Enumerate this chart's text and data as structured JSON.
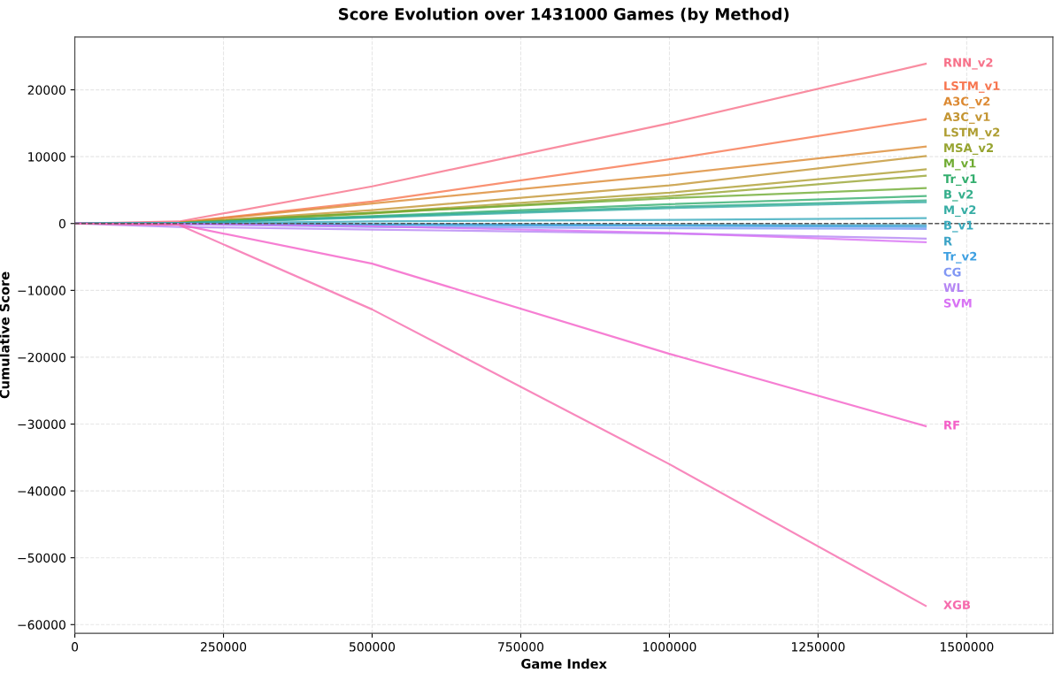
{
  "chart_data": {
    "type": "line",
    "title": "Score Evolution over 1431000 Games (by Method)",
    "xlabel": "Game Index",
    "ylabel": "Cumulative Score",
    "x": [
      0,
      175000,
      500000,
      1000000,
      1431000
    ],
    "series": [
      {
        "name": "RNN_v2",
        "color": "#f77189",
        "values": [
          0,
          300,
          5560,
          15000,
          23900
        ]
      },
      {
        "name": "LSTM_v1",
        "color": "#f7754f",
        "values": [
          0,
          150,
          3300,
          9600,
          15600
        ]
      },
      {
        "name": "A3C_v2",
        "color": "#dc8932",
        "values": [
          0,
          120,
          3000,
          7300,
          11500
        ]
      },
      {
        "name": "A3C_v1",
        "color": "#c39532",
        "values": [
          0,
          100,
          2000,
          5700,
          10100
        ]
      },
      {
        "name": "LSTM_v2",
        "color": "#ae9d31",
        "values": [
          0,
          80,
          1600,
          4600,
          8100
        ]
      },
      {
        "name": "MSA_v2",
        "color": "#97a431",
        "values": [
          0,
          80,
          1500,
          4100,
          7150
        ]
      },
      {
        "name": "M_v1",
        "color": "#6fab32",
        "values": [
          0,
          80,
          1600,
          3800,
          5300
        ]
      },
      {
        "name": "Tr_v1",
        "color": "#33ae6e",
        "values": [
          0,
          60,
          1100,
          2900,
          4100
        ]
      },
      {
        "name": "B_v2",
        "color": "#34ae8b",
        "values": [
          0,
          60,
          1000,
          2500,
          3450
        ]
      },
      {
        "name": "M_v2",
        "color": "#36ada4",
        "values": [
          0,
          50,
          900,
          2300,
          3200
        ]
      },
      {
        "name": "B_v1",
        "color": "#38aabd",
        "values": [
          0,
          20,
          300,
          550,
          800
        ]
      },
      {
        "name": "R",
        "color": "#3ba3c6",
        "values": [
          0,
          -20,
          -100,
          -200,
          -250
        ]
      },
      {
        "name": "Tr_v2",
        "color": "#3d9fe1",
        "values": [
          0,
          -30,
          -200,
          -350,
          -500
        ]
      },
      {
        "name": "CG",
        "color": "#8197f4",
        "values": [
          0,
          -100,
          -500,
          -700,
          -800
        ]
      },
      {
        "name": "WL",
        "color": "#b586f4",
        "values": [
          0,
          -500,
          -900,
          -1500,
          -2250
        ]
      },
      {
        "name": "SVM",
        "color": "#d872f4",
        "values": [
          0,
          -50,
          -400,
          -1400,
          -2800
        ]
      },
      {
        "name": "RF",
        "color": "#f45fc8",
        "values": [
          0,
          -150,
          -6000,
          -19500,
          -30300
        ]
      },
      {
        "name": "XGB",
        "color": "#f66bad",
        "values": [
          0,
          -200,
          -12850,
          -36000,
          -57200
        ]
      }
    ],
    "xlim": [
      0,
      1645000
    ],
    "ylim": [
      -61300,
      27900
    ],
    "xticks": [
      0,
      250000,
      500000,
      750000,
      1000000,
      1250000,
      1500000
    ],
    "yticks": [
      -60000,
      -50000,
      -40000,
      -30000,
      -20000,
      -10000,
      0,
      10000,
      20000
    ],
    "ref_lines": [
      {
        "axis": "y",
        "value": 0,
        "color": "#555555",
        "line_style": "dashed"
      }
    ],
    "grid": true,
    "legend": false,
    "line_style": "solid",
    "marker": "none"
  }
}
